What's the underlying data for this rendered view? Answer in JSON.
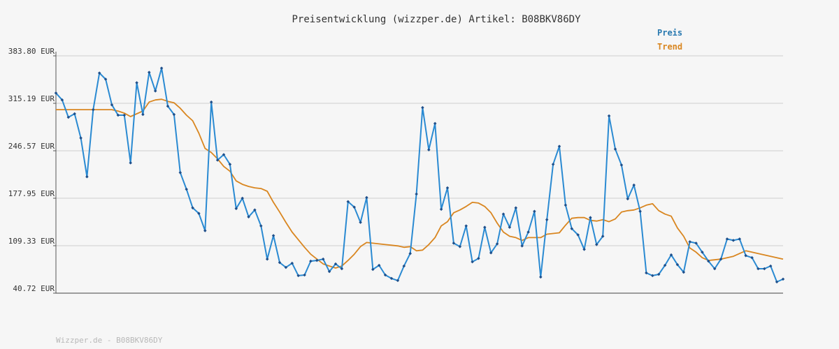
{
  "chart_data": {
    "type": "line",
    "title": "Preisentwicklung (wizzper.de) Artikel: B08BKV86DY",
    "footer": "Wizzper.de - B08BKV86DY",
    "ylim": [
      40.72,
      383.8
    ],
    "y_ticks": [
      "383.80 EUR",
      "315.19 EUR",
      "246.57 EUR",
      "177.95 EUR",
      "109.33 EUR",
      "40.72 EUR"
    ],
    "grid": true,
    "legend_position": "top-right",
    "colors": {
      "Preis": "#2a8ad2",
      "Trend": "#d98620",
      "points": "#1f4f8a",
      "grid": "#e2e2e2",
      "axis": "#555555",
      "text": "#333333"
    },
    "series": [
      {
        "name": "Preis",
        "values": [
          330,
          320,
          295,
          300,
          265,
          209,
          306,
          359,
          350,
          313,
          298,
          298,
          229,
          345,
          299,
          360,
          333,
          366,
          311,
          299,
          215,
          191,
          164,
          156,
          131,
          317,
          233,
          241,
          227,
          163,
          178,
          151,
          161,
          138,
          90,
          124,
          85,
          78,
          84,
          66,
          67,
          87,
          88,
          90,
          72,
          83,
          76,
          173,
          165,
          143,
          179,
          75,
          81,
          67,
          62,
          59,
          80,
          98,
          184,
          309,
          248,
          286,
          162,
          193,
          113,
          108,
          138,
          86,
          91,
          136,
          99,
          112,
          155,
          136,
          164,
          109,
          129,
          159,
          64,
          147,
          227,
          253,
          168,
          134,
          125,
          104,
          150,
          111,
          123,
          297,
          249,
          226,
          177,
          197,
          159,
          70,
          66,
          68,
          81,
          96,
          82,
          71,
          115,
          113,
          100,
          87,
          76,
          90,
          119,
          117,
          119,
          95,
          92,
          76,
          76,
          80,
          57,
          61
        ]
      },
      {
        "name": "Trend",
        "values": [
          306,
          306,
          306,
          306,
          306,
          306,
          306,
          306,
          306,
          306,
          304,
          301,
          296,
          300,
          304,
          317,
          320,
          321,
          318,
          316,
          308,
          298,
          290,
          272,
          250,
          244,
          235,
          224,
          217,
          203,
          198,
          195,
          193,
          192,
          188,
          172,
          158,
          143,
          129,
          118,
          107,
          97,
          90,
          83,
          80,
          77,
          80,
          88,
          97,
          108,
          114,
          113,
          112,
          111,
          110,
          109,
          107,
          108,
          102,
          103,
          111,
          121,
          138,
          144,
          157,
          161,
          166,
          172,
          171,
          166,
          157,
          142,
          129,
          123,
          121,
          117,
          121,
          121,
          121,
          126,
          127,
          128,
          139,
          149,
          150,
          150,
          146,
          145,
          147,
          144,
          148,
          158,
          160,
          161,
          164,
          168,
          170,
          160,
          155,
          152,
          135,
          123,
          106,
          100,
          92,
          88,
          89,
          90,
          92,
          94,
          98,
          102,
          100,
          98,
          96,
          94,
          92,
          90
        ]
      }
    ]
  }
}
